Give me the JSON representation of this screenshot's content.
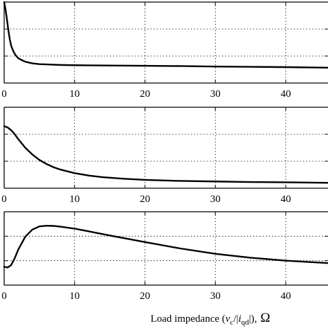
{
  "xlabel": {
    "prefix": "Load impedance (",
    "v": "v",
    "v_sub": "c",
    "mid": "/|",
    "i": "i",
    "i_sub": "qd",
    "suffix": "|),",
    "omega": "Ω"
  },
  "chart_data": [
    {
      "type": "line",
      "x_ticks": [
        "0",
        "10",
        "20",
        "30",
        "40"
      ],
      "xlim": [
        0,
        46
      ],
      "ylim": [
        0,
        3
      ],
      "y_tick_values": [
        1,
        2
      ],
      "grid": true,
      "series": [
        {
          "x": [
            0,
            0.2,
            0.4,
            0.6,
            0.8,
            1.0,
            1.3,
            1.6,
            2.0,
            2.5,
            3,
            4,
            5,
            6,
            8,
            10,
            15,
            20,
            25,
            30,
            35,
            40,
            46
          ],
          "y": [
            3.0,
            2.72,
            2.35,
            1.95,
            1.62,
            1.38,
            1.18,
            1.04,
            0.92,
            0.85,
            0.79,
            0.73,
            0.7,
            0.69,
            0.67,
            0.66,
            0.65,
            0.64,
            0.63,
            0.61,
            0.6,
            0.59,
            0.57
          ]
        }
      ]
    },
    {
      "type": "line",
      "x_ticks": [
        "0",
        "10",
        "20",
        "30",
        "40"
      ],
      "xlim": [
        0,
        46
      ],
      "ylim": [
        0,
        3
      ],
      "y_tick_values": [
        1,
        2
      ],
      "grid": true,
      "series": [
        {
          "x": [
            0,
            0.5,
            1,
            1.5,
            2,
            3,
            4,
            5,
            6,
            7,
            8,
            10,
            12,
            14,
            17,
            20,
            25,
            30,
            35,
            40,
            46
          ],
          "y": [
            2.3,
            2.25,
            2.15,
            2.0,
            1.82,
            1.5,
            1.25,
            1.05,
            0.9,
            0.78,
            0.69,
            0.56,
            0.47,
            0.41,
            0.35,
            0.31,
            0.27,
            0.25,
            0.23,
            0.22,
            0.2
          ]
        }
      ]
    },
    {
      "type": "line",
      "x_ticks": [
        "0",
        "10",
        "20",
        "30",
        "40"
      ],
      "xlim": [
        0,
        46
      ],
      "ylim": [
        0,
        3
      ],
      "y_tick_values": [
        1,
        2
      ],
      "grid": true,
      "series": [
        {
          "x": [
            0,
            0.5,
            1,
            1.5,
            2,
            3,
            4,
            5,
            6,
            7,
            8,
            10,
            12,
            15,
            20,
            25,
            30,
            35,
            40,
            46
          ],
          "y": [
            0.75,
            0.72,
            0.82,
            1.1,
            1.45,
            1.98,
            2.27,
            2.4,
            2.43,
            2.42,
            2.39,
            2.31,
            2.2,
            2.03,
            1.76,
            1.5,
            1.28,
            1.12,
            1.0,
            0.9
          ]
        }
      ]
    }
  ]
}
